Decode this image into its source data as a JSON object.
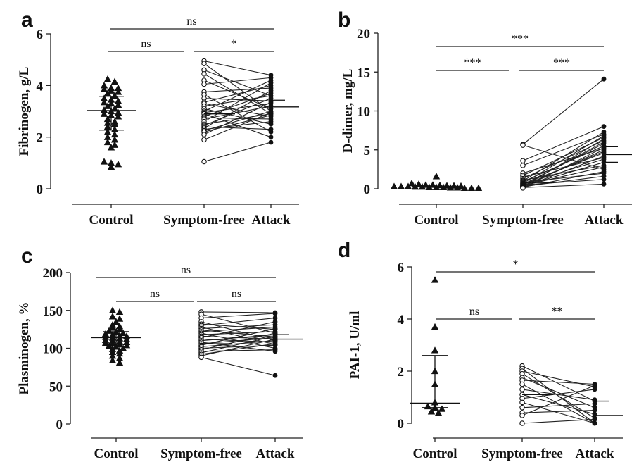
{
  "chart_data": [
    {
      "panel": "a",
      "type": "scatter",
      "ylabel": "Fibrinogen, g/L",
      "categories": [
        "Control",
        "Symptom-free",
        "Attack"
      ],
      "ylim": [
        0,
        6
      ],
      "yticks": [
        "0",
        "2",
        "4",
        "6"
      ],
      "groups": {
        "control": [
          4.25,
          4.15,
          4.0,
          3.9,
          3.9,
          3.85,
          3.8,
          3.75,
          3.7,
          3.6,
          3.5,
          3.45,
          3.4,
          3.35,
          3.3,
          3.25,
          3.2,
          3.1,
          3.05,
          3.0,
          2.95,
          2.9,
          2.85,
          2.8,
          2.7,
          2.6,
          2.55,
          2.5,
          2.4,
          2.3,
          2.2,
          2.1,
          2.0,
          1.9,
          1.8,
          1.7,
          1.6,
          1.05,
          1.0,
          0.95,
          0.85
        ],
        "control_summary": {
          "median": 3.03,
          "lower": 2.27,
          "upper": 3.58
        },
        "symptom_free_summary": {
          "median": 2.9
        },
        "attack_summary": {
          "median": 3.17,
          "upper": 3.43
        }
      },
      "paired": [
        [
          4.95,
          4.4
        ],
        [
          4.85,
          3.0
        ],
        [
          4.6,
          3.6
        ],
        [
          4.45,
          2.9
        ],
        [
          4.2,
          3.1
        ],
        [
          4.05,
          4.3
        ],
        [
          3.75,
          3.9
        ],
        [
          3.65,
          2.2
        ],
        [
          3.5,
          3.4
        ],
        [
          3.35,
          4.0
        ],
        [
          3.3,
          2.8
        ],
        [
          3.2,
          3.6
        ],
        [
          3.1,
          2.5
        ],
        [
          3.0,
          4.2
        ],
        [
          2.95,
          3.3
        ],
        [
          2.9,
          2.0
        ],
        [
          2.8,
          3.7
        ],
        [
          2.75,
          2.7
        ],
        [
          2.7,
          3.2
        ],
        [
          2.6,
          4.1
        ],
        [
          2.5,
          2.9
        ],
        [
          2.45,
          3.5
        ],
        [
          2.4,
          2.3
        ],
        [
          2.35,
          3.8
        ],
        [
          2.3,
          2.6
        ],
        [
          2.25,
          3.0
        ],
        [
          2.2,
          2.85
        ],
        [
          2.1,
          3.35
        ],
        [
          1.9,
          2.95
        ],
        [
          1.05,
          1.8
        ]
      ],
      "brackets": [
        {
          "label": "ns",
          "from": 0,
          "to": 2
        },
        {
          "label": "ns",
          "from": 0,
          "to": 1
        },
        {
          "label": "*",
          "from": 1,
          "to": 2
        }
      ]
    },
    {
      "panel": "b",
      "type": "scatter",
      "ylabel": "D-dimer, mg/L",
      "categories": [
        "Control",
        "Symptom-free",
        "Attack"
      ],
      "ylim": [
        0,
        20
      ],
      "yticks": [
        "0",
        "5",
        "10",
        "15",
        "20"
      ],
      "groups": {
        "control": [
          1.6,
          0.7,
          0.6,
          0.5,
          0.5,
          0.45,
          0.4,
          0.4,
          0.35,
          0.3,
          0.3,
          0.3,
          0.25,
          0.25,
          0.2,
          0.2,
          0.2,
          0.15,
          0.15,
          0.1,
          0.1,
          0.1
        ],
        "control_summary": {
          "median": 0.3
        },
        "symptom_free_summary": {
          "median": 0.8
        },
        "attack_summary": {
          "median": 4.4,
          "lower": 3.4,
          "upper": 5.4
        }
      },
      "paired": [
        [
          5.7,
          14.1
        ],
        [
          5.6,
          2.5
        ],
        [
          3.6,
          8.0
        ],
        [
          3.0,
          7.0
        ],
        [
          2.0,
          5.2
        ],
        [
          1.7,
          6.6
        ],
        [
          1.5,
          4.0
        ],
        [
          1.3,
          6.2
        ],
        [
          1.1,
          3.0
        ],
        [
          1.0,
          7.3
        ],
        [
          0.9,
          5.5
        ],
        [
          0.8,
          2.0
        ],
        [
          0.7,
          6.8
        ],
        [
          0.65,
          4.6
        ],
        [
          0.6,
          3.8
        ],
        [
          0.55,
          5.8
        ],
        [
          0.5,
          1.2
        ],
        [
          0.45,
          6.0
        ],
        [
          0.4,
          2.8
        ],
        [
          0.4,
          4.8
        ],
        [
          0.35,
          3.4
        ],
        [
          0.3,
          5.0
        ],
        [
          0.3,
          1.6
        ],
        [
          0.25,
          6.4
        ],
        [
          0.2,
          4.2
        ],
        [
          0.2,
          2.2
        ],
        [
          0.15,
          0.6
        ],
        [
          0.1,
          5.3
        ]
      ],
      "brackets": [
        {
          "label": "***",
          "from": 0,
          "to": 2
        },
        {
          "label": "***",
          "from": 0,
          "to": 1
        },
        {
          "label": "***",
          "from": 1,
          "to": 2
        }
      ]
    },
    {
      "panel": "c",
      "type": "scatter",
      "ylabel": "Plasminogen, %",
      "categories": [
        "Control",
        "Symptom-free",
        "Attack"
      ],
      "ylim": [
        0,
        200
      ],
      "yticks": [
        "0",
        "50",
        "100",
        "150",
        "200"
      ],
      "groups": {
        "control": [
          150,
          148,
          142,
          139,
          135,
          131,
          129,
          127,
          125,
          123,
          122,
          120,
          119,
          118,
          117,
          116,
          115,
          114,
          113,
          112,
          111,
          110,
          109,
          108,
          107,
          106,
          105,
          104,
          103,
          102,
          100,
          99,
          97,
          95,
          93,
          90,
          87,
          84,
          81
        ],
        "control_summary": {
          "median": 114,
          "lower": 105,
          "upper": 122
        },
        "symptom_free_summary": {
          "median": 106
        },
        "attack_summary": {
          "median": 112,
          "upper": 118
        }
      },
      "paired": [
        [
          148,
          147
        ],
        [
          145,
          120
        ],
        [
          140,
          146
        ],
        [
          135,
          110
        ],
        [
          132,
          125
        ],
        [
          130,
          140
        ],
        [
          128,
          105
        ],
        [
          126,
          131
        ],
        [
          124,
          115
        ],
        [
          122,
          128
        ],
        [
          120,
          100
        ],
        [
          118,
          122
        ],
        [
          116,
          112
        ],
        [
          114,
          135
        ],
        [
          112,
          108
        ],
        [
          110,
          118
        ],
        [
          108,
          96
        ],
        [
          106,
          114
        ],
        [
          104,
          126
        ],
        [
          102,
          110
        ],
        [
          100,
          104
        ],
        [
          98,
          120
        ],
        [
          96,
          98
        ],
        [
          94,
          116
        ],
        [
          92,
          106
        ],
        [
          90,
          112
        ],
        [
          88,
          64
        ]
      ],
      "brackets": [
        {
          "label": "ns",
          "from": 0,
          "to": 2
        },
        {
          "label": "ns",
          "from": 0,
          "to": 1
        },
        {
          "label": "ns",
          "from": 1,
          "to": 2
        }
      ]
    },
    {
      "panel": "d",
      "type": "scatter",
      "ylabel": "PAI-1, U/ml",
      "categories": [
        "Control",
        "Symptom-free",
        "Attack"
      ],
      "ylim": [
        0,
        6
      ],
      "yticks": [
        "0",
        "2",
        "4",
        "6"
      ],
      "groups": {
        "control": [
          5.5,
          3.7,
          2.8,
          2.0,
          1.5,
          0.8,
          0.65,
          0.6,
          0.55,
          0.45,
          0.4
        ],
        "control_summary": {
          "median": 0.77,
          "lower": 0.6,
          "upper": 2.6
        },
        "symptom_free_summary": {
          "median": 1.1
        },
        "attack_summary": {
          "median": 0.3,
          "upper": 0.85
        }
      },
      "paired": [
        [
          2.2,
          0.85
        ],
        [
          2.1,
          0.0
        ],
        [
          2.0,
          1.4
        ],
        [
          1.9,
          0.2
        ],
        [
          1.75,
          0.6
        ],
        [
          1.65,
          1.5
        ],
        [
          1.5,
          0.0
        ],
        [
          1.3,
          0.9
        ],
        [
          1.1,
          0.35
        ],
        [
          0.95,
          1.3
        ],
        [
          0.8,
          0.0
        ],
        [
          0.6,
          0.75
        ],
        [
          0.4,
          0.5
        ],
        [
          0.3,
          1.45
        ],
        [
          0.0,
          0.15
        ]
      ],
      "brackets": [
        {
          "label": "*",
          "from": 0,
          "to": 2
        },
        {
          "label": "ns",
          "from": 0,
          "to": 1
        },
        {
          "label": "**",
          "from": 1,
          "to": 2
        }
      ]
    }
  ]
}
